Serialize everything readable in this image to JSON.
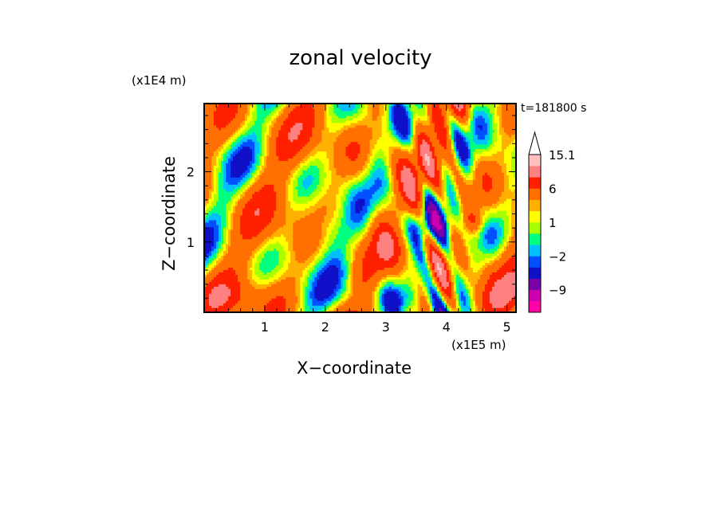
{
  "chart_data": {
    "type": "heatmap",
    "title": "zonal velocity",
    "xlabel": "X−coordinate",
    "ylabel": "Z−coordinate",
    "x_unit": "(x1E5 m)",
    "y_unit": "(x1E4 m)",
    "time_label": "t=181800 s",
    "xlim": [
      0,
      5.15
    ],
    "ylim": [
      0,
      2.97
    ],
    "x_ticks": [
      1,
      2,
      3,
      4,
      5
    ],
    "y_ticks": [
      1,
      2
    ],
    "colorbar": {
      "levels": [
        -15,
        -12,
        -9,
        -6,
        -3,
        -2,
        -1,
        0,
        1,
        2,
        3,
        6,
        9,
        12,
        15.1
      ],
      "labels": [
        "15.1",
        "6",
        "1",
        "−2",
        "−9"
      ],
      "colors": [
        "#ff00a8",
        "#cc00b0",
        "#7a00a8",
        "#1010c8",
        "#0050ff",
        "#00c0ff",
        "#00ff80",
        "#a8ff00",
        "#ffff00",
        "#ffb000",
        "#ff7000",
        "#ff2000",
        "#ff8080",
        "#ffc0c0"
      ],
      "extend": "max",
      "label_colors": "#000000"
    },
    "grid": false,
    "colors": {
      "background": "#ffffff",
      "axes": "#000000"
    }
  }
}
